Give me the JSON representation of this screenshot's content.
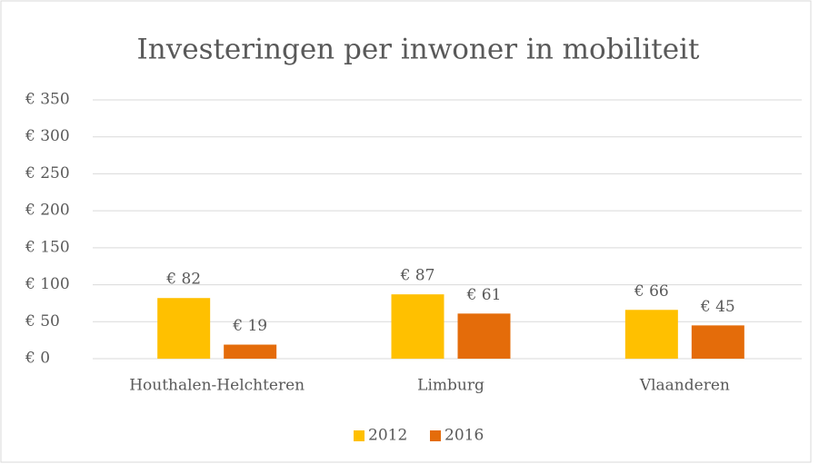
{
  "chart_data": {
    "type": "bar",
    "title": "Investeringen per inwoner in mobiliteit",
    "categories": [
      "Houthalen-Helchteren",
      "Limburg",
      "Vlaanderen"
    ],
    "series": [
      {
        "name": "2012",
        "color": "#ffc000",
        "values": [
          82,
          87,
          66
        ],
        "value_labels": [
          "€ 82",
          "€ 87",
          "€ 66"
        ]
      },
      {
        "name": "2016",
        "color": "#e46c0a",
        "values": [
          19,
          61,
          45
        ],
        "value_labels": [
          "€ 19",
          "€ 61",
          "€ 45"
        ]
      }
    ],
    "ylim": [
      0,
      350
    ],
    "yticks": [
      {
        "value": 0,
        "label": "€ 0"
      },
      {
        "value": 50,
        "label": "€ 50"
      },
      {
        "value": 100,
        "label": "€ 100"
      },
      {
        "value": 150,
        "label": "€ 150"
      },
      {
        "value": 200,
        "label": "€ 200"
      },
      {
        "value": 250,
        "label": "€ 250"
      },
      {
        "value": 300,
        "label": "€ 300"
      },
      {
        "value": 350,
        "label": "€ 350"
      }
    ],
    "grid": true,
    "legend": "bottom"
  }
}
